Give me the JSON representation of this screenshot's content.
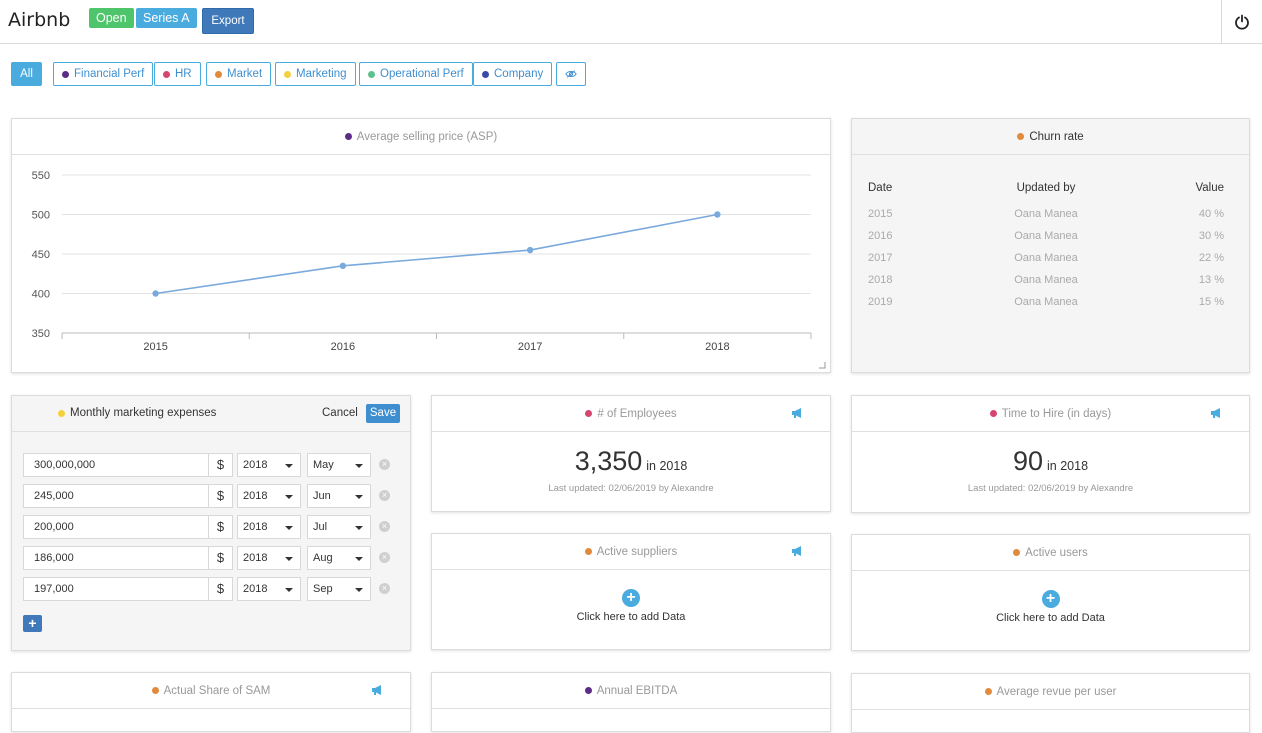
{
  "header": {
    "company": "Airbnb",
    "status_badge": "Open",
    "stage_badge": "Series A",
    "export_label": "Export"
  },
  "filters": [
    {
      "label": "All",
      "color": ""
    },
    {
      "label": "Financial Perf",
      "color": "#5b2d86"
    },
    {
      "label": "HR",
      "color": "#d6456e"
    },
    {
      "label": "Market",
      "color": "#e08a3c"
    },
    {
      "label": "Marketing",
      "color": "#f2d13c"
    },
    {
      "label": "Operational Perf",
      "color": "#5ec08c"
    },
    {
      "label": "Company",
      "color": "#3a4aa8"
    }
  ],
  "asp": {
    "title": "Average selling price (ASP)",
    "color": "#5b2d86"
  },
  "chart_data": {
    "type": "line",
    "title": "Average selling price (ASP)",
    "categories": [
      "2015",
      "2016",
      "2017",
      "2018"
    ],
    "values": [
      400,
      435,
      455,
      500
    ],
    "ylim": [
      350,
      550
    ],
    "yticks": [
      "550",
      "500",
      "450",
      "400",
      "350"
    ],
    "grid": true,
    "line_color": "#7aa9dc"
  },
  "churn": {
    "title": "Churn rate",
    "color": "#e08a3c",
    "headers": {
      "date": "Date",
      "updated_by": "Updated by",
      "value": "Value"
    },
    "rows": [
      {
        "date": "2015",
        "updated_by": "Oana Manea",
        "value": "40 %"
      },
      {
        "date": "2016",
        "updated_by": "Oana Manea",
        "value": "30 %"
      },
      {
        "date": "2017",
        "updated_by": "Oana Manea",
        "value": "22 %"
      },
      {
        "date": "2018",
        "updated_by": "Oana Manea",
        "value": "13 %"
      },
      {
        "date": "2019",
        "updated_by": "Oana Manea",
        "value": "15 %"
      }
    ]
  },
  "marketing": {
    "title": "Monthly marketing expenses",
    "color": "#f2d13c",
    "cancel_label": "Cancel",
    "save_label": "Save",
    "currency": "$",
    "rows": [
      {
        "amount": "300,000,000",
        "year": "2018",
        "month": "May"
      },
      {
        "amount": "245,000",
        "year": "2018",
        "month": "Jun"
      },
      {
        "amount": "200,000",
        "year": "2018",
        "month": "Jul"
      },
      {
        "amount": "186,000",
        "year": "2018",
        "month": "Aug"
      },
      {
        "amount": "197,000",
        "year": "2018",
        "month": "Sep"
      }
    ]
  },
  "employees": {
    "title": "# of Employees",
    "color": "#d6456e",
    "value": "3,350",
    "suffix": "in 2018",
    "updated": "Last updated: 02/06/2019 by Alexandre"
  },
  "time_to_hire": {
    "title": "Time to Hire (in days)",
    "color": "#d6456e",
    "value": "90",
    "suffix": "in 2018",
    "updated": "Last updated: 02/06/2019 by Alexandre"
  },
  "active_suppliers": {
    "title": "Active suppliers",
    "color": "#e08a3c",
    "add_label": "Click here to add Data"
  },
  "active_users": {
    "title": "Active users",
    "color": "#e08a3c",
    "add_label": "Click here to add Data"
  },
  "share_sam": {
    "title": "Actual Share of SAM",
    "color": "#e08a3c"
  },
  "ebitda": {
    "title": "Annual EBITDA",
    "color": "#5b2d86"
  },
  "arpu": {
    "title": "Average revue per user",
    "color": "#e08a3c"
  },
  "icons": {
    "power": "power-icon",
    "hide": "eye-slash-icon",
    "megaphone": "megaphone-icon",
    "add": "plus-icon",
    "remove": "close-circle-icon",
    "resize": "resize-corner-icon"
  }
}
